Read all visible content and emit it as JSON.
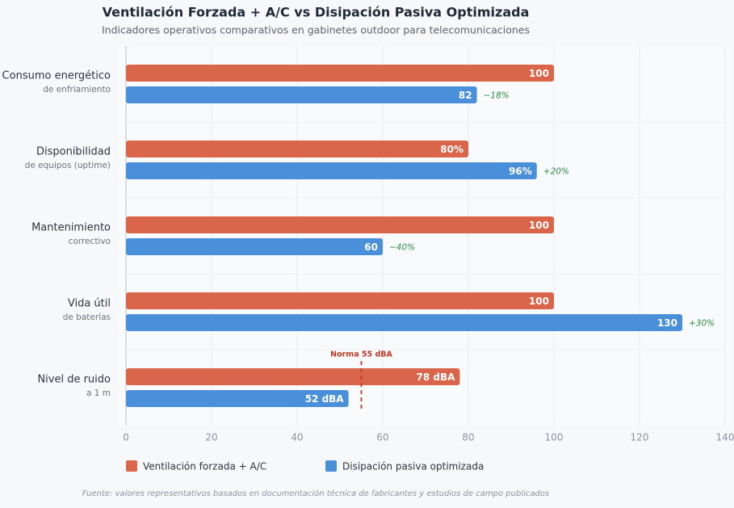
{
  "chart_data": {
    "type": "bar",
    "orientation": "horizontal",
    "title": "Ventilación Forzada + A/C vs Disipación Pasiva Optimizada",
    "subtitle": "Indicadores operativos comparativos en gabinetes outdoor para telecomunicaciones",
    "categories": [
      "Consumo energético",
      "Disponibilidad",
      "Mantenimiento",
      "Vida útil",
      "Nivel de ruido"
    ],
    "category_sublabels": [
      "de enfriamiento",
      "de equipos (uptime)",
      "correctivo",
      "de baterías",
      "a 1 m"
    ],
    "series": [
      {
        "name": "Ventilación forzada + A/C",
        "color": "#d9664a",
        "values": [
          100,
          80,
          100,
          100,
          78
        ],
        "value_labels": [
          "100",
          "80%",
          "100",
          "100",
          "78 dBA"
        ]
      },
      {
        "name": "Disipación pasiva optimizada",
        "color": "#4a8fd9",
        "values": [
          82,
          96,
          60,
          130,
          52
        ],
        "value_labels": [
          "82",
          "96%",
          "60",
          "130",
          "52 dBA"
        ],
        "delta_labels": [
          "−18%",
          "+20%",
          "−40%",
          "+30%",
          null
        ]
      }
    ],
    "reference_line": {
      "value": 55,
      "label": "Norma 55 dBA",
      "color": "#c0392b"
    },
    "xlim": [
      0,
      140
    ],
    "xticks": [
      0,
      20,
      40,
      60,
      80,
      100,
      120,
      140
    ],
    "grid": true,
    "legend_position": "bottom",
    "source": "Fuente: valores representativos basados en documentación técnica de fabricantes y estudios de campo publicados"
  }
}
